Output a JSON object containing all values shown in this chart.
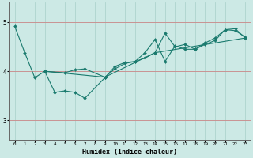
{
  "xlabel": "Humidex (Indice chaleur)",
  "bg_color": "#cce9e5",
  "line_color": "#1a7a6e",
  "grid_color": "#aed4ce",
  "red_line_color": "#cc8888",
  "xlim": [
    -0.5,
    23.5
  ],
  "ylim": [
    2.6,
    5.4
  ],
  "yticks": [
    3,
    4,
    5
  ],
  "xticks": [
    0,
    1,
    2,
    3,
    4,
    5,
    6,
    7,
    8,
    9,
    10,
    11,
    12,
    13,
    14,
    15,
    16,
    17,
    18,
    19,
    20,
    21,
    22,
    23
  ],
  "series": [
    {
      "x": [
        0,
        1,
        2,
        3
      ],
      "y": [
        4.92,
        4.38,
        3.87,
        4.0
      ]
    },
    {
      "x": [
        3,
        4,
        5,
        6,
        7,
        9,
        10,
        11,
        12,
        13,
        14,
        15,
        16,
        17,
        18,
        19,
        20,
        21,
        22,
        23
      ],
      "y": [
        4.0,
        3.57,
        3.6,
        3.57,
        3.45,
        3.87,
        4.1,
        4.18,
        4.2,
        4.38,
        4.65,
        4.2,
        4.52,
        4.45,
        4.45,
        4.58,
        4.68,
        4.85,
        4.83,
        4.7
      ]
    },
    {
      "x": [
        3,
        5,
        6,
        7,
        9,
        10,
        11,
        12,
        13,
        14,
        15,
        16,
        17,
        18,
        19,
        20,
        21,
        22,
        23
      ],
      "y": [
        4.0,
        3.97,
        4.03,
        4.05,
        3.88,
        4.05,
        4.16,
        4.2,
        4.27,
        4.38,
        4.78,
        4.5,
        4.55,
        4.45,
        4.55,
        4.63,
        4.85,
        4.87,
        4.68
      ]
    },
    {
      "x": [
        3,
        9,
        14,
        23
      ],
      "y": [
        4.0,
        3.88,
        4.38,
        4.68
      ]
    }
  ]
}
